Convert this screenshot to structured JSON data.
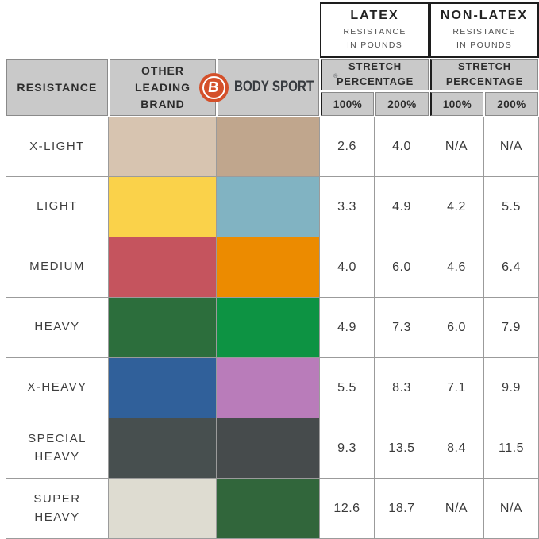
{
  "header": {
    "latex": {
      "title": "LATEX",
      "subtitle": "RESISTANCE\nIN POUNDS"
    },
    "non_latex": {
      "title": "NON-LATEX",
      "subtitle": "RESISTANCE\nIN POUNDS"
    },
    "resistance_label": "RESISTANCE",
    "other_brand_label": "OTHER\nLEADING\nBRAND",
    "brand": {
      "logo_letter": "B",
      "name": "BODY SPORT",
      "registered": "®",
      "logo_color": "#d4502a"
    },
    "stretch_label": "STRETCH\nPERCENTAGE",
    "percent_cols": [
      "100%",
      "200%",
      "100%",
      "200%"
    ]
  },
  "rows": [
    {
      "label": "X-LIGHT",
      "other_color": "#d7c4b0",
      "bodysport_color": "#c0a68d",
      "latex_100": "2.6",
      "latex_200": "4.0",
      "nonlatex_100": "N/A",
      "nonlatex_200": "N/A"
    },
    {
      "label": "LIGHT",
      "other_color": "#fad24a",
      "bodysport_color": "#81b3c2",
      "latex_100": "3.3",
      "latex_200": "4.9",
      "nonlatex_100": "4.2",
      "nonlatex_200": "5.5"
    },
    {
      "label": "MEDIUM",
      "other_color": "#c5545e",
      "bodysport_color": "#ec8b00",
      "latex_100": "4.0",
      "latex_200": "6.0",
      "nonlatex_100": "4.6",
      "nonlatex_200": "6.4"
    },
    {
      "label": "HEAVY",
      "other_color": "#2c6e3c",
      "bodysport_color": "#0d9343",
      "latex_100": "4.9",
      "latex_200": "7.3",
      "nonlatex_100": "6.0",
      "nonlatex_200": "7.9"
    },
    {
      "label": "X-HEAVY",
      "other_color": "#30609a",
      "bodysport_color": "#b97cba",
      "latex_100": "5.5",
      "latex_200": "8.3",
      "nonlatex_100": "7.1",
      "nonlatex_200": "9.9"
    },
    {
      "label": "SPECIAL\nHEAVY",
      "other_color": "#474f4f",
      "bodysport_color": "#464b4c",
      "latex_100": "9.3",
      "latex_200": "13.5",
      "nonlatex_100": "8.4",
      "nonlatex_200": "11.5"
    },
    {
      "label": "SUPER\nHEAVY",
      "other_color": "#dedcd1",
      "bodysport_color": "#31663b",
      "latex_100": "12.6",
      "latex_200": "18.7",
      "nonlatex_100": "N/A",
      "nonlatex_200": "N/A"
    }
  ],
  "chart_data": {
    "type": "table",
    "column_groups": [
      "LATEX RESISTANCE IN POUNDS (100% / 200% stretch)",
      "NON-LATEX RESISTANCE IN POUNDS (100% / 200% stretch)"
    ],
    "columns": [
      "RESISTANCE",
      "OTHER LEADING BRAND color",
      "BODY SPORT color",
      "LATEX 100%",
      "LATEX 200%",
      "NON-LATEX 100%",
      "NON-LATEX 200%"
    ],
    "rows": [
      [
        "X-LIGHT",
        "#d7c4b0",
        "#c0a68d",
        2.6,
        4.0,
        "N/A",
        "N/A"
      ],
      [
        "LIGHT",
        "#fad24a",
        "#81b3c2",
        3.3,
        4.9,
        4.2,
        5.5
      ],
      [
        "MEDIUM",
        "#c5545e",
        "#ec8b00",
        4.0,
        6.0,
        4.6,
        6.4
      ],
      [
        "HEAVY",
        "#2c6e3c",
        "#0d9343",
        4.9,
        7.3,
        6.0,
        7.9
      ],
      [
        "X-HEAVY",
        "#30609a",
        "#b97cba",
        5.5,
        8.3,
        7.1,
        9.9
      ],
      [
        "SPECIAL HEAVY",
        "#474f4f",
        "#464b4c",
        9.3,
        13.5,
        8.4,
        11.5
      ],
      [
        "SUPER HEAVY",
        "#dedcd1",
        "#31663b",
        12.6,
        18.7,
        "N/A",
        "N/A"
      ]
    ]
  }
}
